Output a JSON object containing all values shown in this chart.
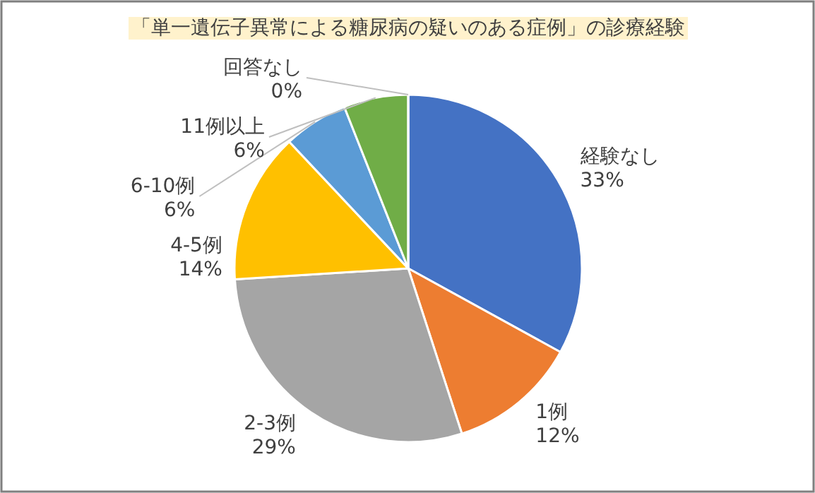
{
  "chart_data": {
    "type": "pie",
    "title": "「単一遺伝子異常による糖尿病の疑いのある症例」の診療経験",
    "categories": [
      "経験なし",
      "1例",
      "2-3例",
      "4-5例",
      "6-10例",
      "11例以上",
      "回答なし"
    ],
    "values": [
      33,
      12,
      29,
      14,
      6,
      6,
      0
    ],
    "value_labels": [
      "33%",
      "12%",
      "29%",
      "14%",
      "6%",
      "6%",
      "0%"
    ],
    "colors": [
      "#4472c4",
      "#ed7d31",
      "#a5a5a5",
      "#ffc000",
      "#5b9bd5",
      "#70ad47",
      "#264478"
    ]
  }
}
